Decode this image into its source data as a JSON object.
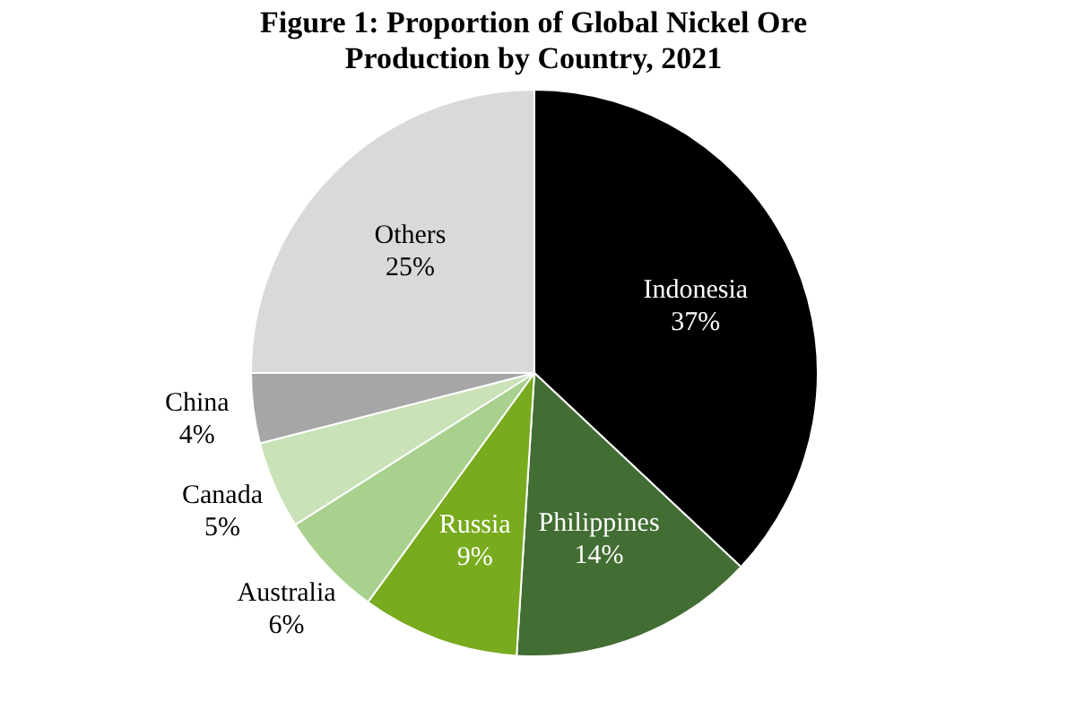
{
  "chart_data": {
    "type": "pie",
    "title": "Figure 1: Proportion of Global Nickel Ore Production by Country, 2021",
    "categories": [
      "Indonesia",
      "Philippines",
      "Russia",
      "Australia",
      "Canada",
      "China",
      "Others"
    ],
    "values": [
      37,
      14,
      9,
      6,
      5,
      4,
      25
    ],
    "colors": [
      "#000000",
      "#426d33",
      "#78ab1e",
      "#a9d18e",
      "#c9e2b8",
      "#a6a6a6",
      "#d9d9d9"
    ],
    "value_labels": [
      "37%",
      "14%",
      "9%",
      "6%",
      "5%",
      "4%",
      "25%"
    ],
    "legend": false
  }
}
